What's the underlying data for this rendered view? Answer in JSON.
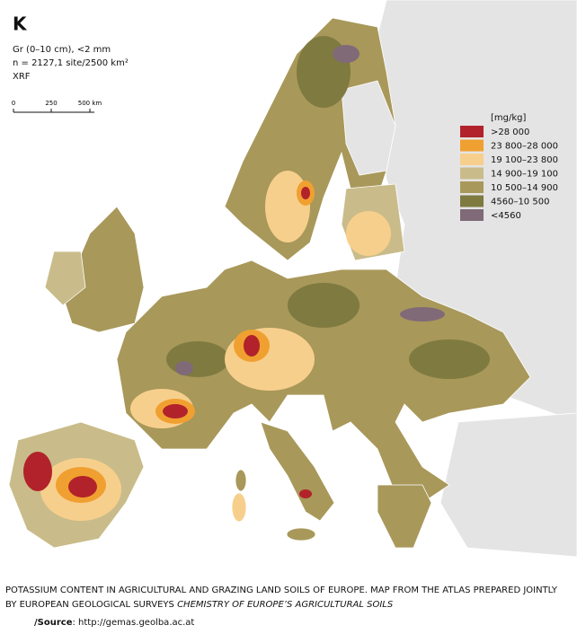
{
  "header": {
    "title": "K",
    "lines": [
      "Gr (0–10 cm), <2 mm",
      "n = 2127,1 site/2500 km²",
      "XRF"
    ]
  },
  "scale_bar": {
    "labels": [
      "0",
      "250",
      "500 km"
    ]
  },
  "legend": {
    "unit": "[mg/kg]",
    "items": [
      {
        "label": ">28 000",
        "color": "#b2222a"
      },
      {
        "label": "23 800–28 000",
        "color": "#f0a030"
      },
      {
        "label": "19 100–23 800",
        "color": "#f7cf8c"
      },
      {
        "label": "14 900–19 100",
        "color": "#c9bc8a"
      },
      {
        "label": "10 500–14 900",
        "color": "#a8985a"
      },
      {
        "label": "4560–10 500",
        "color": "#7f7a40"
      },
      {
        "label": "<4560",
        "color": "#806a78"
      }
    ]
  },
  "caption": {
    "line1": "POTASSIUM CONTENT IN AGRICULTURAL AND GRAZING LAND SOILS OF EUROPE. MAP FROM THE ATLAS PREPARED JOINTLY",
    "line2": "BY EUROPEAN GEOLOGICAL SURVEYS ",
    "line2_italic": "CHEMISTRY OF EUROPE’S AGRICULTURAL SOILS",
    "source_label": "/Source",
    "source_text": ": http://gemas.geolba.ac.at"
  }
}
